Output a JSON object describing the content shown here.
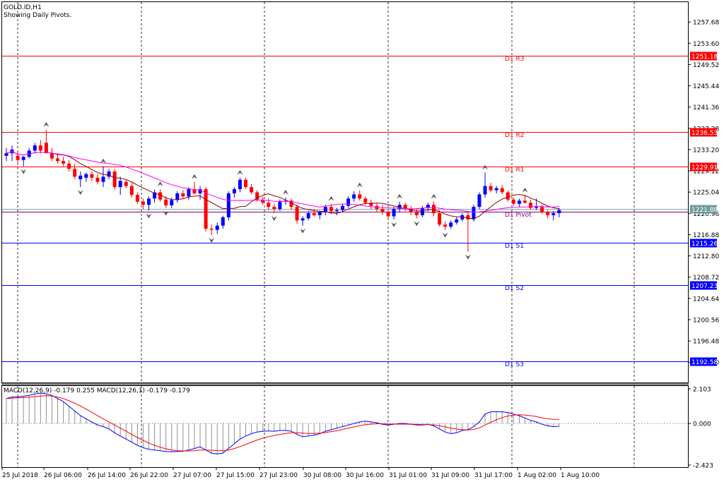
{
  "header": {
    "symbol": "GOLD.ID,H1",
    "subtitle": "Showing Daily Pivots."
  },
  "macd_header": "MACD(12,26,9) -0.179 0.255 MACD(12,26,1) -0.179 -0.179",
  "colors": {
    "bull": "#0000ff",
    "bear": "#ff0000",
    "resistance": "#ff0000",
    "support": "#0000ff",
    "ma_fast": "#8b0000",
    "ma_slow": "#ff00ff",
    "pivot": "#800080",
    "price_line": "#7fa8a8"
  },
  "chart_data": [
    {
      "type": "candlestick",
      "ylim": [
        1188.5,
        1261.5
      ],
      "y_ticks": [
        "1257.68",
        "1253.60",
        "1249.52",
        "1245.44",
        "1241.36",
        "1237.28",
        "1233.20",
        "1229.12",
        "1225.04",
        "1220.96",
        "1216.88",
        "1212.80",
        "1208.72",
        "1204.64",
        "1200.56",
        "1196.48",
        "1192.40"
      ],
      "x_ticks": [
        "25 Jul 2018",
        "26 Jul 06:00",
        "26 Jul 14:00",
        "26 Jul 22:00",
        "27 Jul 07:00",
        "27 Jul 15:00",
        "27 Jul 23:00",
        "30 Jul 08:00",
        "30 Jul 16:00",
        "31 Jul 01:00",
        "31 Jul 09:00",
        "31 Jul 17:00",
        "1 Aug 02:00",
        "1 Aug 10:00"
      ],
      "pivot_levels": [
        {
          "name": "D1 R3",
          "value": 1251.18,
          "label": "1251.18",
          "kind": "resistance"
        },
        {
          "name": "D1 R2",
          "value": 1236.53,
          "label": "1236.53",
          "kind": "resistance"
        },
        {
          "name": "D1 R1",
          "value": 1229.91,
          "label": "1229.91",
          "kind": "resistance"
        },
        {
          "name": "D1 Pivot",
          "value": 1221.25,
          "label": "",
          "kind": "pivot"
        },
        {
          "name": "D1 S1",
          "value": 1215.26,
          "label": "1215.26",
          "kind": "support"
        },
        {
          "name": "D1 S2",
          "value": 1207.23,
          "label": "1207.23",
          "kind": "support"
        },
        {
          "name": "D1 S3",
          "value": 1192.58,
          "label": "1192.58",
          "kind": "support"
        }
      ],
      "current_price": {
        "value": 1221.88,
        "label": "1221.88"
      },
      "ohlc": [
        [
          1232.0,
          1233.5,
          1231.0,
          1232.5
        ],
        [
          1232.5,
          1234.0,
          1231.0,
          1233.2
        ],
        [
          1232.0,
          1233.0,
          1230.5,
          1231.2
        ],
        [
          1231.2,
          1232.0,
          1230.0,
          1231.8
        ],
        [
          1231.8,
          1233.5,
          1231.5,
          1233.0
        ],
        [
          1233.0,
          1234.5,
          1232.5,
          1234.0
        ],
        [
          1234.0,
          1235.0,
          1232.5,
          1233.0
        ],
        [
          1234.5,
          1237.0,
          1232.5,
          1232.5
        ],
        [
          1232.5,
          1233.5,
          1231.0,
          1231.5
        ],
        [
          1231.5,
          1232.5,
          1230.5,
          1231.0
        ],
        [
          1231.0,
          1231.8,
          1230.0,
          1230.5
        ],
        [
          1230.5,
          1231.2,
          1229.0,
          1229.5
        ],
        [
          1229.5,
          1230.5,
          1227.5,
          1228.0
        ],
        [
          1227.5,
          1229.0,
          1226.0,
          1228.2
        ],
        [
          1227.8,
          1228.8,
          1227.0,
          1228.5
        ],
        [
          1228.5,
          1229.0,
          1227.2,
          1227.8
        ],
        [
          1227.8,
          1228.5,
          1226.5,
          1227.0
        ],
        [
          1227.0,
          1230.0,
          1226.0,
          1228.0
        ],
        [
          1228.0,
          1229.5,
          1227.5,
          1229.0
        ],
        [
          1229.0,
          1229.5,
          1225.5,
          1226.0
        ],
        [
          1226.0,
          1228.0,
          1224.5,
          1227.2
        ],
        [
          1227.0,
          1227.5,
          1225.8,
          1226.2
        ],
        [
          1226.2,
          1226.8,
          1224.0,
          1224.5
        ],
        [
          1224.5,
          1225.0,
          1222.8,
          1223.2
        ],
        [
          1223.2,
          1223.8,
          1221.8,
          1222.6
        ],
        [
          1222.6,
          1224.2,
          1221.5,
          1223.8
        ],
        [
          1223.8,
          1225.5,
          1223.0,
          1225.0
        ],
        [
          1225.0,
          1225.6,
          1223.2,
          1223.6
        ],
        [
          1223.6,
          1224.2,
          1222.0,
          1222.5
        ],
        [
          1222.5,
          1224.0,
          1222.0,
          1223.5
        ],
        [
          1223.5,
          1225.2,
          1223.0,
          1224.8
        ],
        [
          1224.8,
          1225.4,
          1223.8,
          1224.2
        ],
        [
          1224.2,
          1226.0,
          1223.5,
          1225.6
        ],
        [
          1225.6,
          1227.0,
          1224.6,
          1224.8
        ],
        [
          1224.8,
          1226.2,
          1223.6,
          1225.6
        ],
        [
          1225.6,
          1226.0,
          1217.5,
          1218.0
        ],
        [
          1218.0,
          1218.8,
          1216.8,
          1217.8
        ],
        [
          1217.8,
          1219.2,
          1217.0,
          1218.6
        ],
        [
          1218.6,
          1220.5,
          1218.0,
          1220.2
        ],
        [
          1220.2,
          1225.2,
          1219.6,
          1224.8
        ],
        [
          1224.8,
          1226.0,
          1224.0,
          1225.6
        ],
        [
          1225.6,
          1227.8,
          1225.0,
          1227.4
        ],
        [
          1227.4,
          1227.8,
          1225.6,
          1226.0
        ],
        [
          1226.0,
          1226.6,
          1224.6,
          1225.0
        ],
        [
          1225.0,
          1225.4,
          1223.2,
          1223.6
        ],
        [
          1223.6,
          1224.2,
          1222.6,
          1223.0
        ],
        [
          1223.0,
          1223.8,
          1221.6,
          1222.2
        ],
        [
          1222.2,
          1222.8,
          1221.0,
          1221.8
        ],
        [
          1221.8,
          1223.6,
          1221.4,
          1223.2
        ],
        [
          1223.2,
          1224.0,
          1222.6,
          1223.4
        ],
        [
          1223.4,
          1223.8,
          1221.6,
          1222.2
        ],
        [
          1222.2,
          1222.6,
          1219.0,
          1219.6
        ],
        [
          1219.6,
          1220.4,
          1218.6,
          1220.0
        ],
        [
          1220.0,
          1221.4,
          1219.6,
          1221.0
        ],
        [
          1221.0,
          1221.8,
          1220.4,
          1220.6
        ],
        [
          1220.6,
          1221.4,
          1219.8,
          1221.2
        ],
        [
          1221.2,
          1222.6,
          1220.6,
          1222.2
        ],
        [
          1222.2,
          1222.8,
          1220.8,
          1221.4
        ],
        [
          1221.4,
          1222.0,
          1220.6,
          1221.6
        ],
        [
          1221.6,
          1222.8,
          1221.2,
          1222.4
        ],
        [
          1222.4,
          1224.2,
          1222.0,
          1223.8
        ],
        [
          1223.8,
          1225.2,
          1223.2,
          1224.6
        ],
        [
          1224.6,
          1225.4,
          1223.4,
          1223.8
        ],
        [
          1223.8,
          1224.2,
          1222.6,
          1223.0
        ],
        [
          1223.0,
          1223.6,
          1221.8,
          1222.4
        ],
        [
          1222.4,
          1222.8,
          1221.2,
          1221.8
        ],
        [
          1221.8,
          1222.6,
          1220.6,
          1221.2
        ],
        [
          1221.2,
          1221.8,
          1220.0,
          1220.4
        ],
        [
          1220.4,
          1222.2,
          1219.8,
          1221.8
        ],
        [
          1221.8,
          1223.2,
          1221.2,
          1222.6
        ],
        [
          1222.6,
          1223.0,
          1221.4,
          1221.8
        ],
        [
          1221.8,
          1222.4,
          1220.6,
          1221.2
        ],
        [
          1221.2,
          1221.8,
          1220.0,
          1220.6
        ],
        [
          1220.6,
          1222.4,
          1220.2,
          1222.0
        ],
        [
          1222.0,
          1223.0,
          1221.4,
          1222.6
        ],
        [
          1222.6,
          1223.2,
          1220.4,
          1221.0
        ],
        [
          1221.0,
          1221.6,
          1218.4,
          1218.8
        ],
        [
          1218.8,
          1219.4,
          1217.8,
          1218.4
        ],
        [
          1218.4,
          1219.6,
          1218.0,
          1219.2
        ],
        [
          1219.2,
          1220.2,
          1218.8,
          1219.8
        ],
        [
          1219.8,
          1221.0,
          1219.4,
          1220.6
        ],
        [
          1220.6,
          1221.2,
          1213.6,
          1219.8
        ],
        [
          1219.8,
          1222.6,
          1219.4,
          1222.2
        ],
        [
          1222.2,
          1225.0,
          1221.8,
          1224.6
        ],
        [
          1224.6,
          1228.8,
          1224.0,
          1226.2
        ],
        [
          1226.2,
          1226.8,
          1225.0,
          1225.4
        ],
        [
          1225.4,
          1226.2,
          1224.8,
          1225.8
        ],
        [
          1225.8,
          1226.4,
          1224.6,
          1225.0
        ],
        [
          1225.0,
          1225.4,
          1223.2,
          1223.6
        ],
        [
          1223.6,
          1224.0,
          1222.4,
          1222.8
        ],
        [
          1222.8,
          1223.8,
          1222.2,
          1223.4
        ],
        [
          1223.4,
          1224.4,
          1222.8,
          1223.0
        ],
        [
          1223.0,
          1223.6,
          1221.6,
          1222.0
        ],
        [
          1222.0,
          1223.8,
          1221.6,
          1222.2
        ],
        [
          1222.2,
          1222.6,
          1220.8,
          1221.2
        ],
        [
          1221.2,
          1221.6,
          1220.0,
          1220.6
        ],
        [
          1220.6,
          1221.4,
          1219.6,
          1221.0
        ],
        [
          1221.0,
          1222.0,
          1220.2,
          1221.6
        ]
      ]
    },
    {
      "type": "macd",
      "ylim": [
        -2.8,
        2.4
      ],
      "y_ticks": [
        "2.103",
        "0.000",
        "-2.423"
      ],
      "signal_value": 0.255,
      "main_value": -0.179,
      "histogram": [
        1.6,
        1.7,
        1.7,
        1.75,
        1.8,
        1.9,
        1.95,
        1.9,
        1.8,
        1.6,
        1.4,
        1.1,
        0.8,
        0.5,
        0.3,
        0.1,
        -0.1,
        -0.2,
        -0.35,
        -0.6,
        -0.8,
        -1.0,
        -1.2,
        -1.4,
        -1.55,
        -1.65,
        -1.7,
        -1.75,
        -1.8,
        -1.82,
        -1.8,
        -1.78,
        -1.7,
        -1.6,
        -1.5,
        -1.7,
        -1.9,
        -1.95,
        -1.9,
        -1.6,
        -1.3,
        -1.0,
        -0.8,
        -0.65,
        -0.55,
        -0.5,
        -0.48,
        -0.5,
        -0.45,
        -0.45,
        -0.5,
        -0.7,
        -0.85,
        -0.8,
        -0.75,
        -0.65,
        -0.5,
        -0.4,
        -0.3,
        -0.2,
        -0.1,
        0.0,
        0.1,
        0.15,
        0.1,
        0.05,
        -0.05,
        -0.1,
        -0.05,
        0.0,
        0.0,
        -0.05,
        -0.1,
        -0.1,
        -0.05,
        -0.15,
        -0.35,
        -0.55,
        -0.65,
        -0.6,
        -0.45,
        -0.4,
        -0.2,
        0.1,
        0.6,
        0.75,
        0.75,
        0.75,
        0.7,
        0.6,
        0.5,
        0.35,
        0.2,
        0.1,
        -0.05,
        -0.15,
        -0.2,
        -0.18
      ],
      "signal": [
        1.6,
        1.62,
        1.64,
        1.66,
        1.68,
        1.72,
        1.76,
        1.78,
        1.76,
        1.7,
        1.6,
        1.45,
        1.3,
        1.12,
        0.92,
        0.72,
        0.5,
        0.3,
        0.1,
        -0.1,
        -0.3,
        -0.5,
        -0.7,
        -0.9,
        -1.08,
        -1.25,
        -1.4,
        -1.52,
        -1.62,
        -1.7,
        -1.74,
        -1.76,
        -1.76,
        -1.74,
        -1.7,
        -1.7,
        -1.72,
        -1.74,
        -1.74,
        -1.7,
        -1.6,
        -1.48,
        -1.35,
        -1.2,
        -1.06,
        -0.94,
        -0.84,
        -0.77,
        -0.7,
        -0.64,
        -0.6,
        -0.6,
        -0.62,
        -0.64,
        -0.64,
        -0.62,
        -0.58,
        -0.52,
        -0.46,
        -0.38,
        -0.3,
        -0.22,
        -0.14,
        -0.08,
        -0.04,
        -0.02,
        -0.02,
        -0.04,
        -0.04,
        -0.04,
        -0.04,
        -0.05,
        -0.06,
        -0.07,
        -0.07,
        -0.09,
        -0.14,
        -0.22,
        -0.3,
        -0.36,
        -0.4,
        -0.42,
        -0.38,
        -0.28,
        -0.1,
        0.08,
        0.24,
        0.38,
        0.48,
        0.54,
        0.56,
        0.54,
        0.5,
        0.44,
        0.36,
        0.3,
        0.26,
        0.255
      ]
    }
  ]
}
